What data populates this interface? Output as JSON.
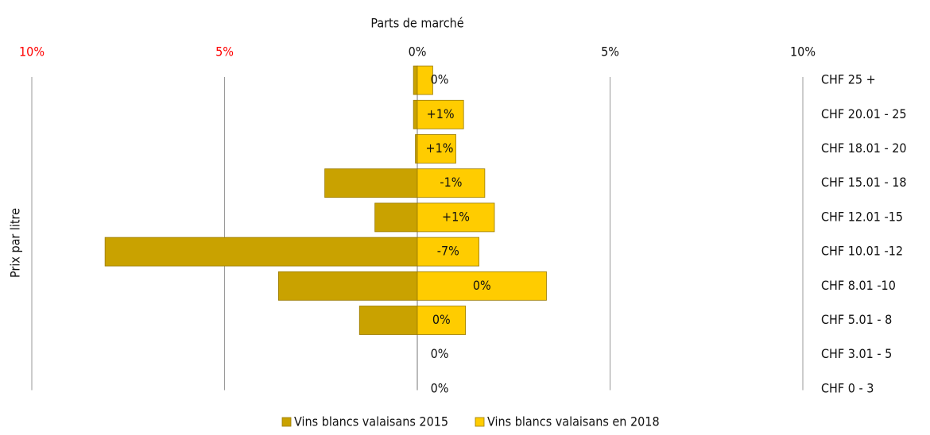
{
  "chart_data": {
    "type": "butterfly",
    "x_label": "Parts de marché",
    "y_label": "Prix par litre",
    "categories": [
      "CHF 25 +",
      "CHF 20.01 - 25",
      "CHF 18.01 - 20",
      "CHF 15.01 - 18",
      "CHF 12.01 -15",
      "CHF 10.01 -12",
      "CHF 8.01 -10",
      "CHF 5.01 - 8",
      "CHF 3.01 - 5",
      "CHF 0 - 3"
    ],
    "series": [
      {
        "name": "Vins blancs valaisans 2015",
        "color": "#c9a200",
        "values": [
          -0.1,
          -0.1,
          -0.05,
          -2.4,
          -1.1,
          -8.1,
          -3.6,
          -1.5,
          0,
          0
        ]
      },
      {
        "name": "Vins blancs valaisans en 2018",
        "color": "#ffcc00",
        "values": [
          0.4,
          1.2,
          1.0,
          1.75,
          2.0,
          1.6,
          3.35,
          1.25,
          0,
          0
        ]
      }
    ],
    "annotations": [
      "0%",
      "+1%",
      "+1%",
      "-1%",
      "+1%",
      "-7%",
      "0%",
      "0%",
      "0%",
      "0%"
    ],
    "xlim": [
      -10,
      10
    ],
    "xticks": [
      {
        "value": -10,
        "label": "10%"
      },
      {
        "value": -5,
        "label": "5%"
      },
      {
        "value": 0,
        "label": "0%"
      },
      {
        "value": 5,
        "label": "5%"
      },
      {
        "value": 10,
        "label": "10%"
      }
    ],
    "negative_tick_color": "#ff0000",
    "grid": true,
    "legend": "bottom"
  }
}
